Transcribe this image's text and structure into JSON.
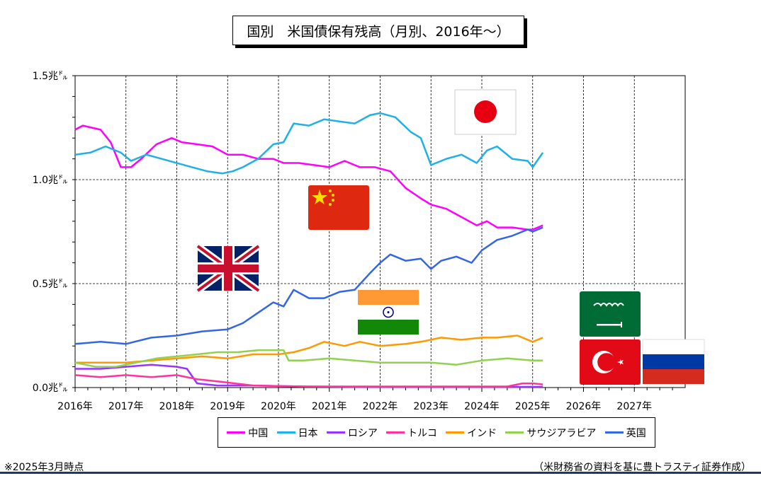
{
  "title": "国別　米国債保有残高（月別、2016年～）",
  "footnote": "※2025年3月時点",
  "source": "（米財務省の資料を基に豊トラスティ証券作成）",
  "chart_data": {
    "type": "line",
    "title": "国別　米国債保有残高（月別、2016年～）",
    "ylim": [
      0,
      1.5
    ],
    "y_ticks": [
      0,
      0.5,
      1.0,
      1.5
    ],
    "y_tick_labels": [
      "0.0兆㌦",
      "0.5兆㌦",
      "1.0兆㌦",
      "1.5兆㌦"
    ],
    "x_range": [
      2016,
      2028
    ],
    "x_tick_labels": [
      "2016年",
      "2017年",
      "2018年",
      "2019年",
      "2020年",
      "2021年",
      "2022年",
      "2023年",
      "2024年",
      "2025年",
      "2026年",
      "2027年"
    ],
    "grid": true,
    "legend_position": "bottom",
    "series": [
      {
        "name": "中国",
        "color": "#ff00ff",
        "x": [
          2016,
          2016.15,
          2016.5,
          2016.7,
          2016.9,
          2017.1,
          2017.3,
          2017.6,
          2017.9,
          2018.1,
          2018.4,
          2018.7,
          2019.0,
          2019.3,
          2019.6,
          2019.9,
          2020.1,
          2020.4,
          2020.7,
          2021.0,
          2021.3,
          2021.6,
          2021.9,
          2022.2,
          2022.5,
          2022.8,
          2023.0,
          2023.3,
          2023.6,
          2023.9,
          2024.1,
          2024.3,
          2024.6,
          2024.9,
          2025.0,
          2025.2
        ],
        "values": [
          1.24,
          1.26,
          1.24,
          1.18,
          1.06,
          1.06,
          1.1,
          1.17,
          1.2,
          1.18,
          1.17,
          1.16,
          1.12,
          1.12,
          1.1,
          1.1,
          1.08,
          1.08,
          1.07,
          1.06,
          1.09,
          1.06,
          1.06,
          1.04,
          0.96,
          0.91,
          0.88,
          0.86,
          0.82,
          0.78,
          0.8,
          0.77,
          0.77,
          0.76,
          0.76,
          0.78
        ]
      },
      {
        "name": "日本",
        "color": "#1fb0e6",
        "x": [
          2016,
          2016.3,
          2016.6,
          2016.9,
          2017.1,
          2017.4,
          2017.7,
          2018.0,
          2018.3,
          2018.6,
          2018.9,
          2019.1,
          2019.3,
          2019.6,
          2019.9,
          2020.1,
          2020.3,
          2020.6,
          2020.9,
          2021.2,
          2021.5,
          2021.8,
          2022.0,
          2022.3,
          2022.6,
          2022.8,
          2023.0,
          2023.3,
          2023.6,
          2023.9,
          2024.1,
          2024.3,
          2024.6,
          2024.9,
          2025.0,
          2025.2
        ],
        "values": [
          1.12,
          1.13,
          1.16,
          1.13,
          1.09,
          1.12,
          1.1,
          1.08,
          1.06,
          1.04,
          1.03,
          1.04,
          1.06,
          1.1,
          1.17,
          1.18,
          1.27,
          1.26,
          1.29,
          1.28,
          1.27,
          1.31,
          1.32,
          1.3,
          1.23,
          1.2,
          1.07,
          1.1,
          1.12,
          1.08,
          1.14,
          1.16,
          1.1,
          1.09,
          1.06,
          1.13
        ]
      },
      {
        "name": "ロシア",
        "color": "#9933ff",
        "x": [
          2016,
          2016.5,
          2017.0,
          2017.5,
          2018.0,
          2018.2,
          2018.4,
          2018.8,
          2019.5,
          2020.5,
          2021.5,
          2022.5,
          2023.5,
          2024.5,
          2025.2
        ],
        "values": [
          0.09,
          0.09,
          0.1,
          0.11,
          0.1,
          0.09,
          0.02,
          0.01,
          0.01,
          0.005,
          0.003,
          0.003,
          0.003,
          0.003,
          0.004
        ]
      },
      {
        "name": "トルコ",
        "color": "#ff3399",
        "x": [
          2016,
          2016.5,
          2017.0,
          2017.5,
          2018.0,
          2018.4,
          2018.8,
          2019.5,
          2020.5,
          2021.5,
          2022.5,
          2023.5,
          2024.5,
          2024.8,
          2025.0,
          2025.2
        ],
        "values": [
          0.06,
          0.05,
          0.06,
          0.05,
          0.06,
          0.04,
          0.03,
          0.01,
          0.005,
          0.005,
          0.005,
          0.005,
          0.005,
          0.02,
          0.02,
          0.015
        ]
      },
      {
        "name": "インド",
        "color": "#ff9900",
        "x": [
          2016,
          2016.5,
          2017.0,
          2017.5,
          2018.0,
          2018.5,
          2019.0,
          2019.5,
          2020.0,
          2020.3,
          2020.6,
          2020.9,
          2021.3,
          2021.6,
          2022.0,
          2022.5,
          2022.8,
          2023.2,
          2023.6,
          2024.0,
          2024.3,
          2024.7,
          2025.0,
          2025.2
        ],
        "values": [
          0.12,
          0.12,
          0.12,
          0.13,
          0.14,
          0.15,
          0.14,
          0.16,
          0.16,
          0.17,
          0.19,
          0.22,
          0.2,
          0.22,
          0.2,
          0.21,
          0.22,
          0.24,
          0.23,
          0.24,
          0.24,
          0.25,
          0.22,
          0.24
        ]
      },
      {
        "name": "サウジアラビア",
        "color": "#92d050",
        "x": [
          2016,
          2016.4,
          2016.8,
          2017.2,
          2017.6,
          2018.0,
          2018.4,
          2018.8,
          2019.2,
          2019.6,
          2020.0,
          2020.1,
          2020.2,
          2020.5,
          2021.0,
          2021.5,
          2022.0,
          2022.5,
          2023.0,
          2023.5,
          2024.0,
          2024.5,
          2025.0,
          2025.2
        ],
        "values": [
          0.12,
          0.1,
          0.1,
          0.12,
          0.14,
          0.15,
          0.16,
          0.17,
          0.17,
          0.18,
          0.18,
          0.18,
          0.13,
          0.13,
          0.14,
          0.13,
          0.12,
          0.12,
          0.12,
          0.11,
          0.13,
          0.14,
          0.13,
          0.13
        ]
      },
      {
        "name": "英国",
        "color": "#3366e6",
        "x": [
          2016,
          2016.5,
          2017.0,
          2017.5,
          2018.0,
          2018.5,
          2019.0,
          2019.3,
          2019.6,
          2019.9,
          2020.1,
          2020.3,
          2020.6,
          2020.9,
          2021.2,
          2021.5,
          2021.8,
          2022.0,
          2022.2,
          2022.5,
          2022.8,
          2023.0,
          2023.2,
          2023.5,
          2023.8,
          2024.0,
          2024.3,
          2024.6,
          2024.9,
          2025.0,
          2025.2
        ],
        "values": [
          0.21,
          0.22,
          0.21,
          0.24,
          0.25,
          0.27,
          0.28,
          0.31,
          0.36,
          0.41,
          0.39,
          0.47,
          0.43,
          0.43,
          0.46,
          0.47,
          0.55,
          0.6,
          0.64,
          0.61,
          0.62,
          0.57,
          0.61,
          0.63,
          0.6,
          0.66,
          0.71,
          0.73,
          0.76,
          0.75,
          0.77
        ]
      }
    ]
  },
  "legend": {
    "items": [
      {
        "label": "中国",
        "color": "#ff00ff"
      },
      {
        "label": "日本",
        "color": "#1fb0e6"
      },
      {
        "label": "ロシア",
        "color": "#9933ff"
      },
      {
        "label": "トルコ",
        "color": "#ff3399"
      },
      {
        "label": "インド",
        "color": "#ff9900"
      },
      {
        "label": "サウジアラビア",
        "color": "#92d050"
      },
      {
        "label": "英国",
        "color": "#3366e6"
      }
    ]
  },
  "flags": [
    {
      "name": "japan-flag",
      "country": "日本"
    },
    {
      "name": "china-flag",
      "country": "中国"
    },
    {
      "name": "uk-flag",
      "country": "英国"
    },
    {
      "name": "india-flag",
      "country": "インド"
    },
    {
      "name": "saudi-arabia-flag",
      "country": "サウジアラビア"
    },
    {
      "name": "turkey-flag",
      "country": "トルコ"
    },
    {
      "name": "russia-flag",
      "country": "ロシア"
    }
  ],
  "colors": {
    "accent_rule": "#1f3864"
  }
}
